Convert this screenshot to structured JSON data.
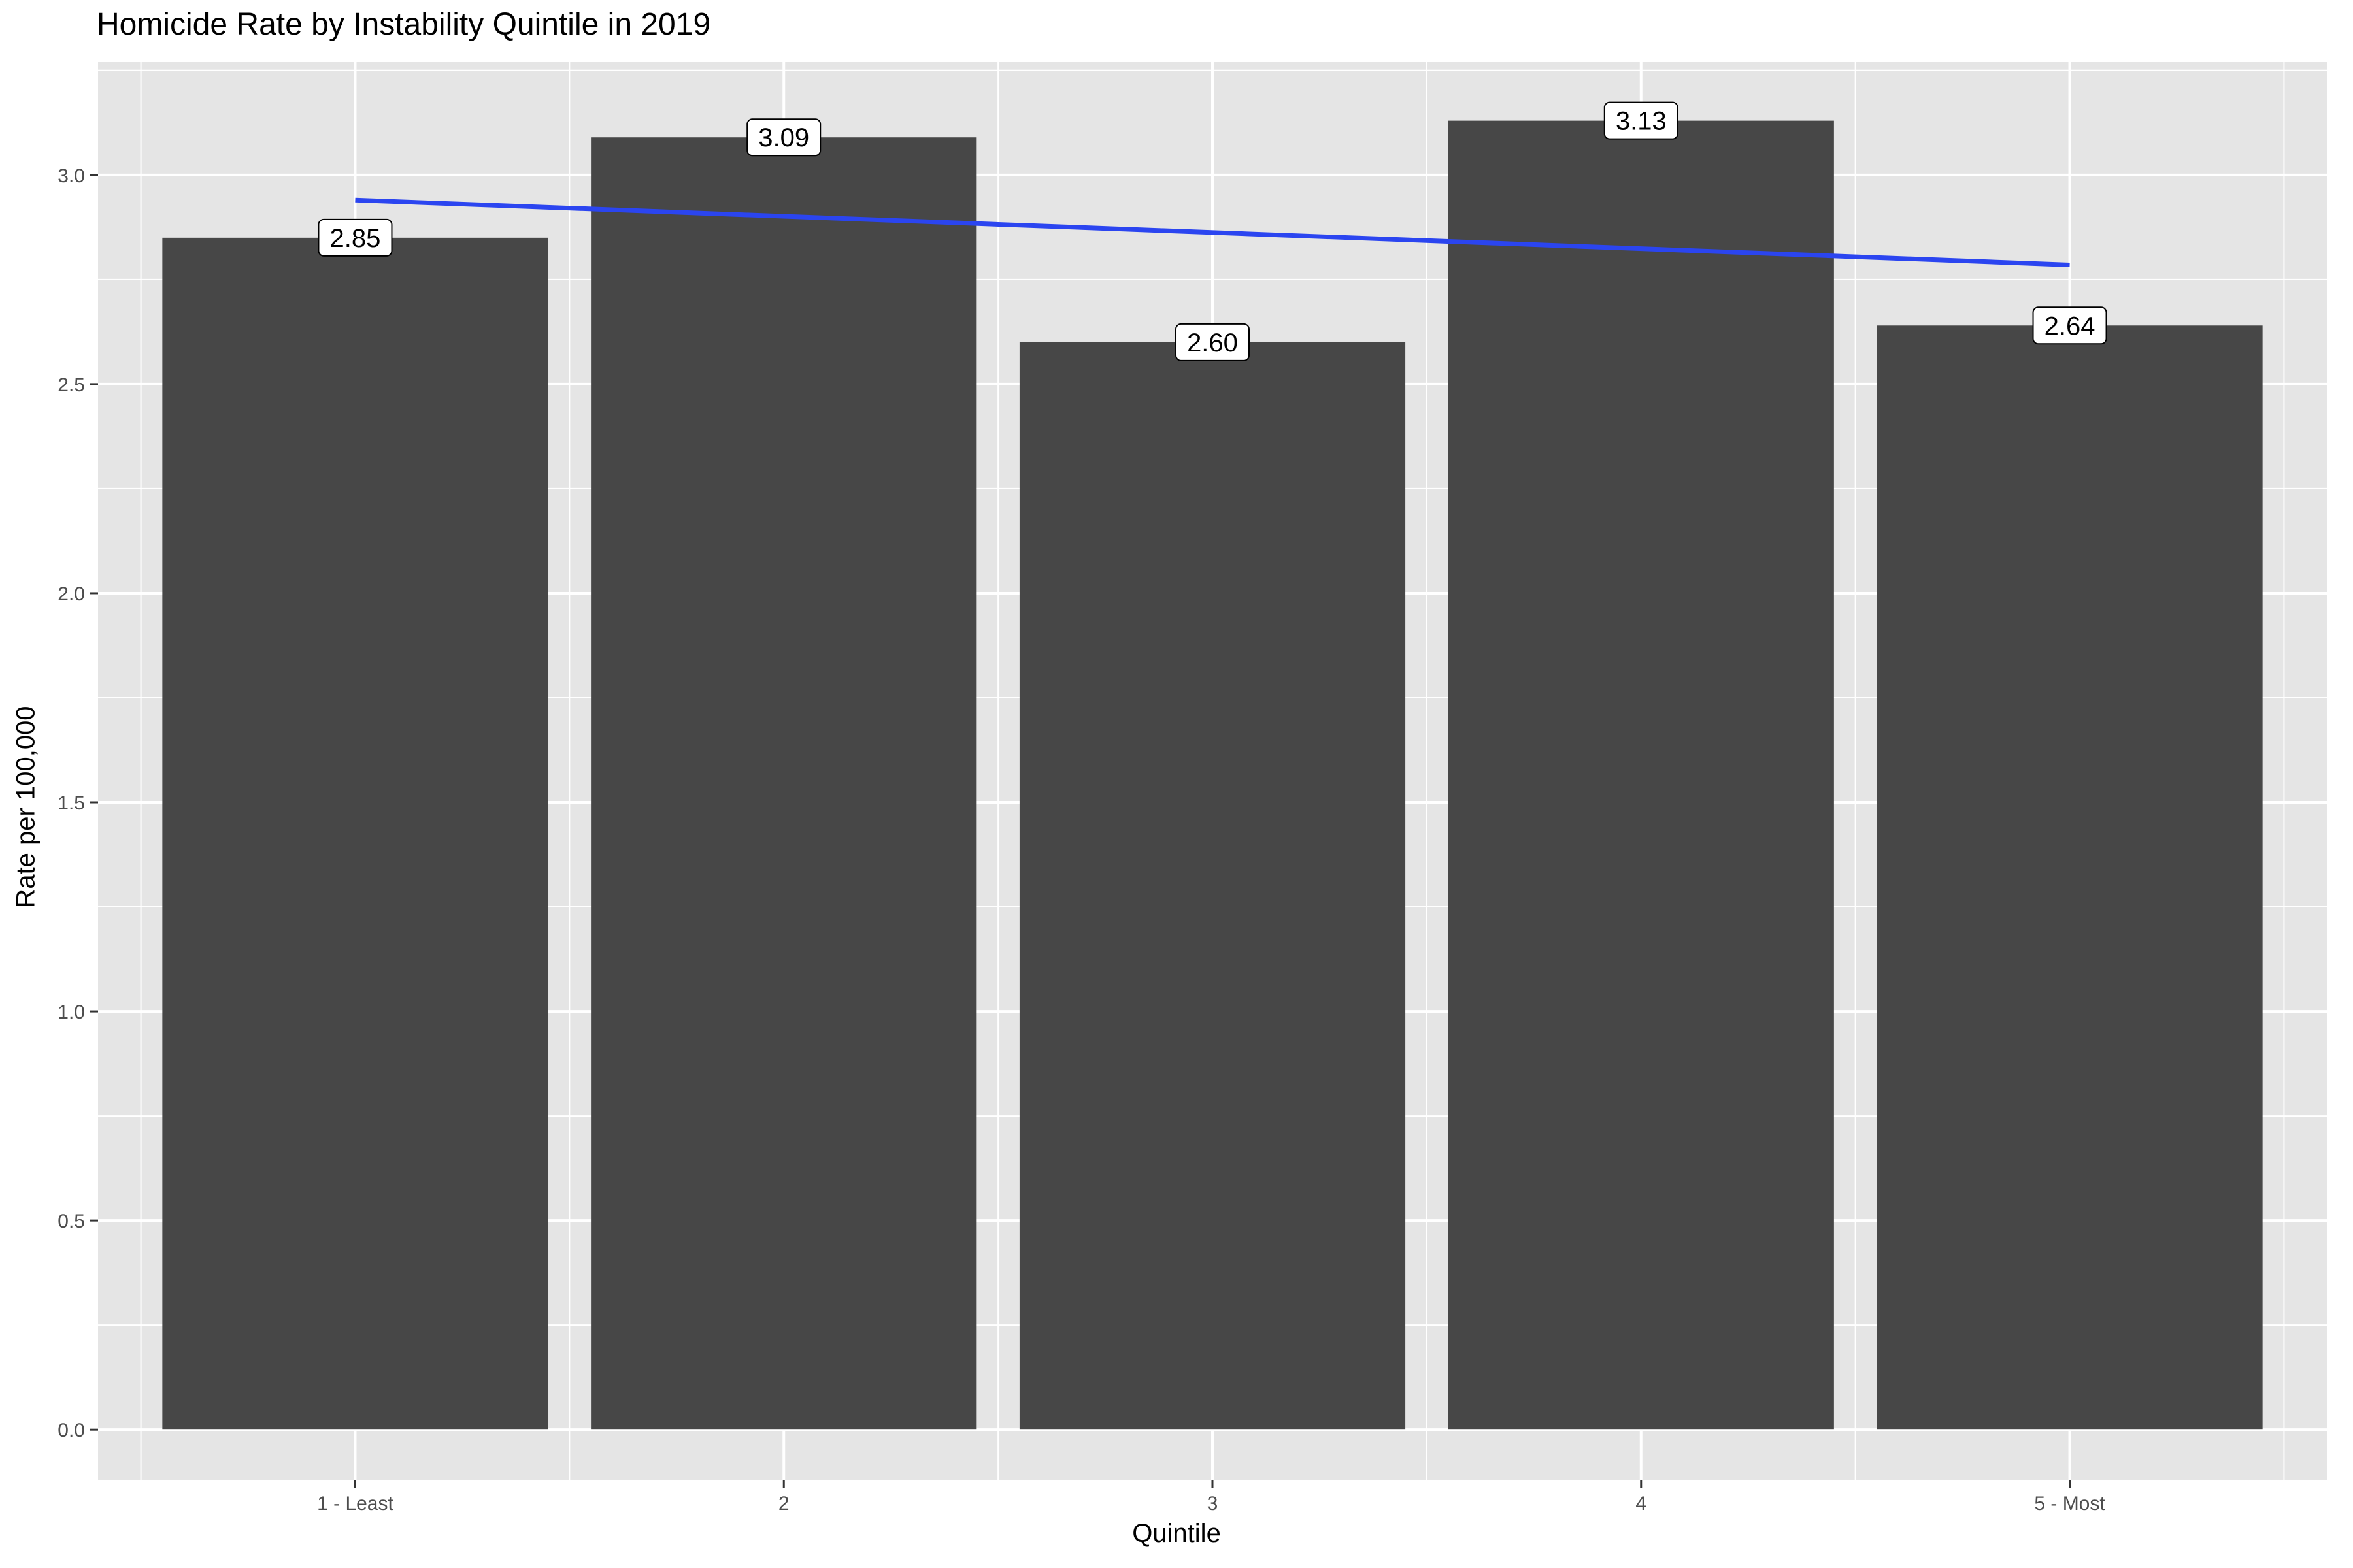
{
  "chart_data": {
    "type": "bar",
    "title": "Homicide Rate by Instability Quintile in 2019",
    "xlabel": "Quintile",
    "ylabel": "Rate per 100,000",
    "categories": [
      "1 - Least",
      "2",
      "3",
      "4",
      "5 - Most"
    ],
    "values": [
      2.85,
      3.09,
      2.6,
      3.13,
      2.64
    ],
    "data_labels": [
      "2.85",
      "3.09",
      "2.60",
      "3.13",
      "2.64"
    ],
    "trend_line": {
      "type": "linear",
      "start": 2.94,
      "end": 2.785
    },
    "ylim": [
      -0.12,
      3.27
    ],
    "yticks": [
      0.0,
      0.5,
      1.0,
      1.5,
      2.0,
      2.5,
      3.0
    ],
    "ytick_labels": [
      "0.0",
      "0.5",
      "1.0",
      "1.5",
      "2.0",
      "2.5",
      "3.0"
    ],
    "grid": true,
    "legend": "none",
    "colors": {
      "bar": "#474747",
      "trend_line": "#2b45f0",
      "panel_background": "#e5e5e5",
      "grid": "#ffffff",
      "label_box": "#ffffff"
    }
  }
}
